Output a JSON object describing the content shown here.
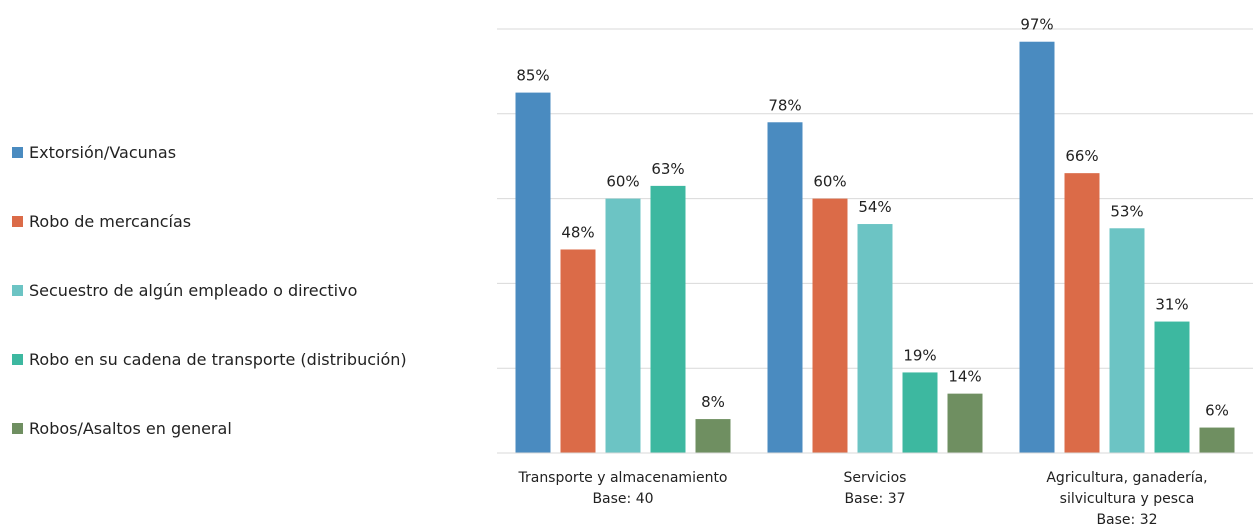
{
  "chart_data": {
    "type": "bar",
    "categories": [
      [
        "Transporte y almacenamiento",
        "Base: 40"
      ],
      [
        "Servicios",
        "Base: 37"
      ],
      [
        "Agricultura, ganadería,",
        "silvicultura y pesca",
        "Base: 32"
      ]
    ],
    "series": [
      {
        "name": "Extorsión/Vacunas",
        "color": "#4a8bc0",
        "values": [
          85,
          78,
          97
        ],
        "labels": [
          "85%",
          "78%",
          "97%"
        ]
      },
      {
        "name": "Robo de mercancías",
        "color": "#db6b48",
        "values": [
          48,
          60,
          66
        ],
        "labels": [
          "48%",
          "60%",
          "66%"
        ]
      },
      {
        "name": "Secuestro de algún empleado o directivo",
        "color": "#6cc4c4",
        "values": [
          60,
          54,
          53
        ],
        "labels": [
          "60%",
          "54%",
          "53%"
        ]
      },
      {
        "name": "Robo en su cadena de transporte (distribución)",
        "color": "#3db8a0",
        "values": [
          63,
          19,
          31
        ],
        "labels": [
          "63%",
          "19%",
          "31%"
        ]
      },
      {
        "name": "Robos/Asaltos en general",
        "color": "#6f8f61",
        "values": [
          8,
          14,
          6
        ],
        "labels": [
          "8%",
          "14%",
          "6%"
        ]
      }
    ],
    "ylim": [
      0,
      100
    ],
    "grid": true,
    "legend_position": "left"
  }
}
